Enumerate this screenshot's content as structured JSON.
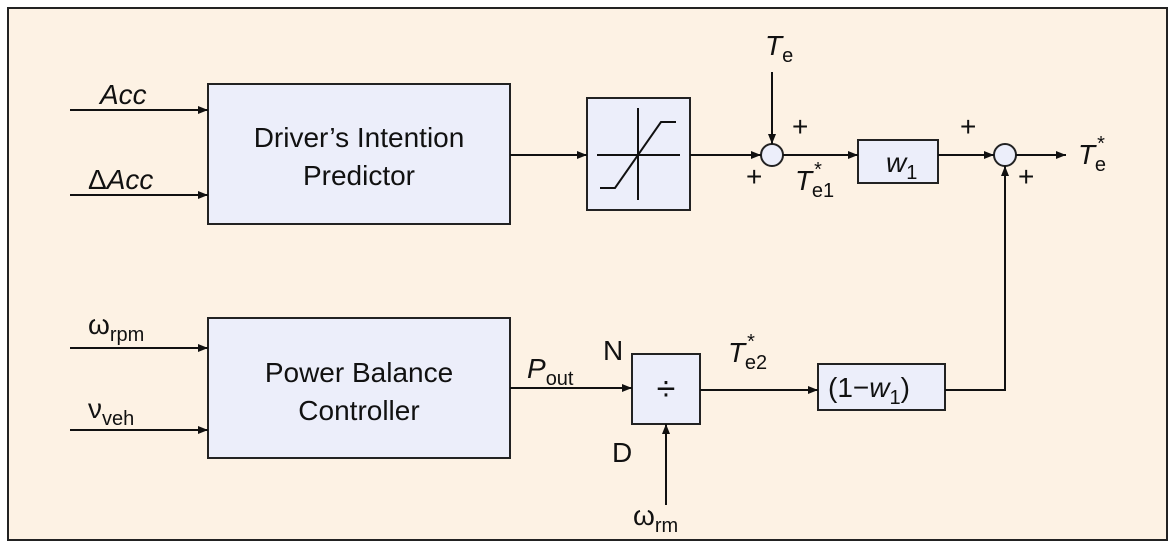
{
  "blocks": {
    "predictor": [
      "Driver’s Intention",
      "Predictor"
    ],
    "controller": [
      "Power Balance",
      "Controller"
    ],
    "divide": "÷",
    "gain": {
      "main": "w",
      "sub": "1"
    },
    "complement": {
      "open": "(1−",
      "main": "w",
      "sub": "1",
      "close": ")"
    }
  },
  "signals": {
    "acc": "Acc",
    "delta_acc": {
      "pre": "Δ",
      "main": "Acc"
    },
    "omega_rpm": {
      "main": "ω",
      "sub": "rpm"
    },
    "v_veh": {
      "main": "ν",
      "sub": "veh"
    },
    "omega_rm": {
      "main": "ω",
      "sub": "rm"
    },
    "p_out": {
      "main": "P",
      "sub": "out"
    },
    "numerator": "N",
    "denominator": "D",
    "te": {
      "main": "T",
      "sub": "e"
    },
    "te1": {
      "main": "T",
      "sup": "*",
      "sub": "e1"
    },
    "te2": {
      "main": "T",
      "sup": "*",
      "sub": "e2"
    },
    "te_out": {
      "main": "T",
      "sup": "*",
      "sub": "e"
    }
  },
  "signs": [
    "+",
    "+",
    "+",
    "+"
  ]
}
